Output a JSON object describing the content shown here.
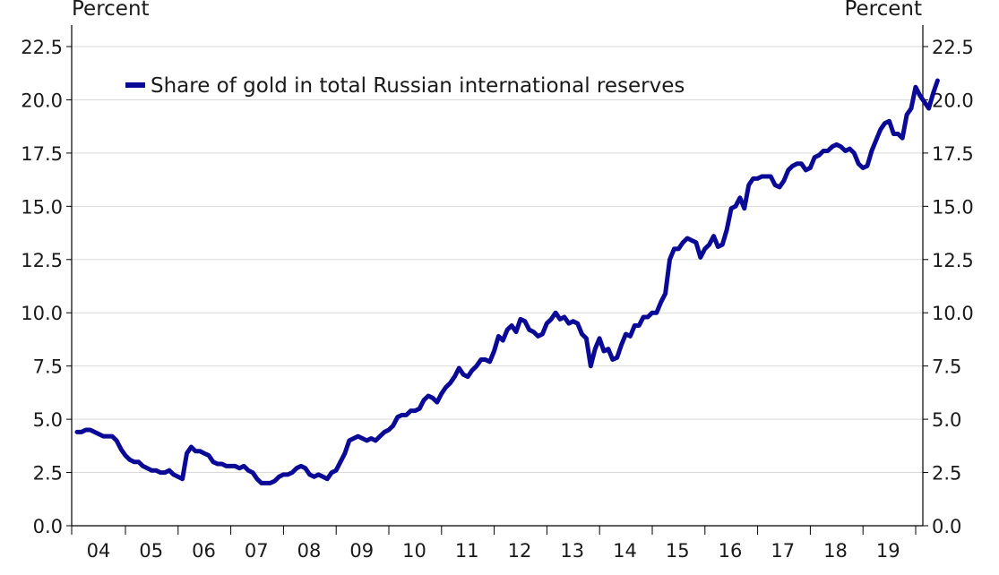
{
  "labels": {
    "left_unit": "Percent",
    "right_unit": "Percent"
  },
  "colors": {
    "series": "#0a0a96",
    "grid": "#d9d9d9",
    "axis": "#000000"
  },
  "chart_data": {
    "type": "line",
    "title": "",
    "xlabel": "",
    "ylabel": "Percent",
    "ylim": [
      0,
      22.5
    ],
    "y_ticks": [
      "0.0",
      "2.5",
      "5.0",
      "7.5",
      "10.0",
      "12.5",
      "15.0",
      "17.5",
      "20.0",
      "22.5"
    ],
    "x_tick_labels": [
      "04",
      "05",
      "06",
      "07",
      "08",
      "09",
      "10",
      "11",
      "12",
      "13",
      "14",
      "15",
      "16",
      "17",
      "18",
      "19"
    ],
    "x_range": [
      "2004-01",
      "2019-12"
    ],
    "grid": true,
    "legend_position": "top-left",
    "series": [
      {
        "name": "Share of gold in total Russian international reserves",
        "points": [
          [
            "2004-01",
            4.4
          ],
          [
            "2004-02",
            4.4
          ],
          [
            "2004-03",
            4.5
          ],
          [
            "2004-04",
            4.5
          ],
          [
            "2004-05",
            4.4
          ],
          [
            "2004-06",
            4.3
          ],
          [
            "2004-07",
            4.2
          ],
          [
            "2004-08",
            4.2
          ],
          [
            "2004-09",
            4.2
          ],
          [
            "2004-10",
            4.0
          ],
          [
            "2004-11",
            3.6
          ],
          [
            "2004-12",
            3.3
          ],
          [
            "2005-01",
            3.1
          ],
          [
            "2005-02",
            3.0
          ],
          [
            "2005-03",
            3.0
          ],
          [
            "2005-04",
            2.8
          ],
          [
            "2005-05",
            2.7
          ],
          [
            "2005-06",
            2.6
          ],
          [
            "2005-07",
            2.6
          ],
          [
            "2005-08",
            2.5
          ],
          [
            "2005-09",
            2.5
          ],
          [
            "2005-10",
            2.6
          ],
          [
            "2005-11",
            2.4
          ],
          [
            "2005-12",
            2.3
          ],
          [
            "2006-01",
            2.2
          ],
          [
            "2006-02",
            3.4
          ],
          [
            "2006-03",
            3.7
          ],
          [
            "2006-04",
            3.5
          ],
          [
            "2006-05",
            3.5
          ],
          [
            "2006-06",
            3.4
          ],
          [
            "2006-07",
            3.3
          ],
          [
            "2006-08",
            3.0
          ],
          [
            "2006-09",
            2.9
          ],
          [
            "2006-10",
            2.9
          ],
          [
            "2006-11",
            2.8
          ],
          [
            "2006-12",
            2.8
          ],
          [
            "2007-01",
            2.8
          ],
          [
            "2007-02",
            2.7
          ],
          [
            "2007-03",
            2.8
          ],
          [
            "2007-04",
            2.6
          ],
          [
            "2007-05",
            2.5
          ],
          [
            "2007-06",
            2.2
          ],
          [
            "2007-07",
            2.0
          ],
          [
            "2007-08",
            2.0
          ],
          [
            "2007-09",
            2.0
          ],
          [
            "2007-10",
            2.1
          ],
          [
            "2007-11",
            2.3
          ],
          [
            "2007-12",
            2.4
          ],
          [
            "2008-01",
            2.4
          ],
          [
            "2008-02",
            2.5
          ],
          [
            "2008-03",
            2.7
          ],
          [
            "2008-04",
            2.8
          ],
          [
            "2008-05",
            2.7
          ],
          [
            "2008-06",
            2.4
          ],
          [
            "2008-07",
            2.3
          ],
          [
            "2008-08",
            2.4
          ],
          [
            "2008-09",
            2.3
          ],
          [
            "2008-10",
            2.2
          ],
          [
            "2008-11",
            2.5
          ],
          [
            "2008-12",
            2.6
          ],
          [
            "2009-01",
            3.0
          ],
          [
            "2009-02",
            3.4
          ],
          [
            "2009-03",
            4.0
          ],
          [
            "2009-04",
            4.1
          ],
          [
            "2009-05",
            4.2
          ],
          [
            "2009-06",
            4.1
          ],
          [
            "2009-07",
            4.0
          ],
          [
            "2009-08",
            4.1
          ],
          [
            "2009-09",
            4.0
          ],
          [
            "2009-10",
            4.2
          ],
          [
            "2009-11",
            4.4
          ],
          [
            "2009-12",
            4.5
          ],
          [
            "2010-01",
            4.7
          ],
          [
            "2010-02",
            5.1
          ],
          [
            "2010-03",
            5.2
          ],
          [
            "2010-04",
            5.2
          ],
          [
            "2010-05",
            5.4
          ],
          [
            "2010-06",
            5.4
          ],
          [
            "2010-07",
            5.5
          ],
          [
            "2010-08",
            5.9
          ],
          [
            "2010-09",
            6.1
          ],
          [
            "2010-10",
            6.0
          ],
          [
            "2010-11",
            5.8
          ],
          [
            "2010-12",
            6.2
          ],
          [
            "2011-01",
            6.5
          ],
          [
            "2011-02",
            6.7
          ],
          [
            "2011-03",
            7.0
          ],
          [
            "2011-04",
            7.4
          ],
          [
            "2011-05",
            7.1
          ],
          [
            "2011-06",
            7.0
          ],
          [
            "2011-07",
            7.3
          ],
          [
            "2011-08",
            7.5
          ],
          [
            "2011-09",
            7.8
          ],
          [
            "2011-10",
            7.8
          ],
          [
            "2011-11",
            7.7
          ],
          [
            "2011-12",
            8.2
          ],
          [
            "2012-01",
            8.9
          ],
          [
            "2012-02",
            8.7
          ],
          [
            "2012-03",
            9.2
          ],
          [
            "2012-04",
            9.4
          ],
          [
            "2012-05",
            9.1
          ],
          [
            "2012-06",
            9.7
          ],
          [
            "2012-07",
            9.6
          ],
          [
            "2012-08",
            9.2
          ],
          [
            "2012-09",
            9.1
          ],
          [
            "2012-10",
            8.9
          ],
          [
            "2012-11",
            9.0
          ],
          [
            "2012-12",
            9.5
          ],
          [
            "2013-01",
            9.7
          ],
          [
            "2013-02",
            10.0
          ],
          [
            "2013-03",
            9.7
          ],
          [
            "2013-04",
            9.8
          ],
          [
            "2013-05",
            9.5
          ],
          [
            "2013-06",
            9.6
          ],
          [
            "2013-07",
            9.5
          ],
          [
            "2013-08",
            9.0
          ],
          [
            "2013-09",
            8.8
          ],
          [
            "2013-10",
            7.5
          ],
          [
            "2013-11",
            8.3
          ],
          [
            "2013-12",
            8.8
          ],
          [
            "2014-01",
            8.2
          ],
          [
            "2014-02",
            8.3
          ],
          [
            "2014-03",
            7.8
          ],
          [
            "2014-04",
            7.9
          ],
          [
            "2014-05",
            8.5
          ],
          [
            "2014-06",
            9.0
          ],
          [
            "2014-07",
            8.9
          ],
          [
            "2014-08",
            9.4
          ],
          [
            "2014-09",
            9.4
          ],
          [
            "2014-10",
            9.8
          ],
          [
            "2014-11",
            9.8
          ],
          [
            "2014-12",
            10.0
          ],
          [
            "2015-01",
            10.0
          ],
          [
            "2015-02",
            10.5
          ],
          [
            "2015-03",
            10.9
          ],
          [
            "2015-04",
            12.5
          ],
          [
            "2015-05",
            13.0
          ],
          [
            "2015-06",
            13.0
          ],
          [
            "2015-07",
            13.3
          ],
          [
            "2015-08",
            13.5
          ],
          [
            "2015-09",
            13.4
          ],
          [
            "2015-10",
            13.3
          ],
          [
            "2015-11",
            12.6
          ],
          [
            "2015-12",
            13.0
          ],
          [
            "2016-01",
            13.2
          ],
          [
            "2016-02",
            13.6
          ],
          [
            "2016-03",
            13.1
          ],
          [
            "2016-04",
            13.2
          ],
          [
            "2016-05",
            13.9
          ],
          [
            "2016-06",
            14.9
          ],
          [
            "2016-07",
            15.0
          ],
          [
            "2016-08",
            15.4
          ],
          [
            "2016-09",
            14.9
          ],
          [
            "2016-10",
            16.0
          ],
          [
            "2016-11",
            16.3
          ],
          [
            "2016-12",
            16.3
          ],
          [
            "2017-01",
            16.4
          ],
          [
            "2017-02",
            16.4
          ],
          [
            "2017-03",
            16.4
          ],
          [
            "2017-04",
            16.0
          ],
          [
            "2017-05",
            15.9
          ],
          [
            "2017-06",
            16.2
          ],
          [
            "2017-07",
            16.7
          ],
          [
            "2017-08",
            16.9
          ],
          [
            "2017-09",
            17.0
          ],
          [
            "2017-10",
            17.0
          ],
          [
            "2017-11",
            16.7
          ],
          [
            "2017-12",
            16.8
          ],
          [
            "2018-01",
            17.3
          ],
          [
            "2018-02",
            17.4
          ],
          [
            "2018-03",
            17.6
          ],
          [
            "2018-04",
            17.6
          ],
          [
            "2018-05",
            17.8
          ],
          [
            "2018-06",
            17.9
          ],
          [
            "2018-07",
            17.8
          ],
          [
            "2018-08",
            17.6
          ],
          [
            "2018-09",
            17.7
          ],
          [
            "2018-10",
            17.5
          ],
          [
            "2018-11",
            17.0
          ],
          [
            "2018-12",
            16.8
          ],
          [
            "2019-01",
            16.9
          ],
          [
            "2019-02",
            17.6
          ],
          [
            "2019-03",
            18.1
          ],
          [
            "2019-04",
            18.6
          ],
          [
            "2019-05",
            18.9
          ],
          [
            "2019-06",
            19.0
          ],
          [
            "2019-07",
            18.4
          ],
          [
            "2019-08",
            18.4
          ],
          [
            "2019-09",
            18.2
          ],
          [
            "2019-10",
            19.3
          ],
          [
            "2019-11",
            19.6
          ],
          [
            "2019-12",
            20.6
          ],
          [
            "2020-01",
            20.2
          ],
          [
            "2020-02",
            19.9
          ],
          [
            "2020-03",
            19.6
          ],
          [
            "2020-04",
            20.3
          ],
          [
            "2020-05",
            20.9
          ]
        ]
      }
    ]
  }
}
